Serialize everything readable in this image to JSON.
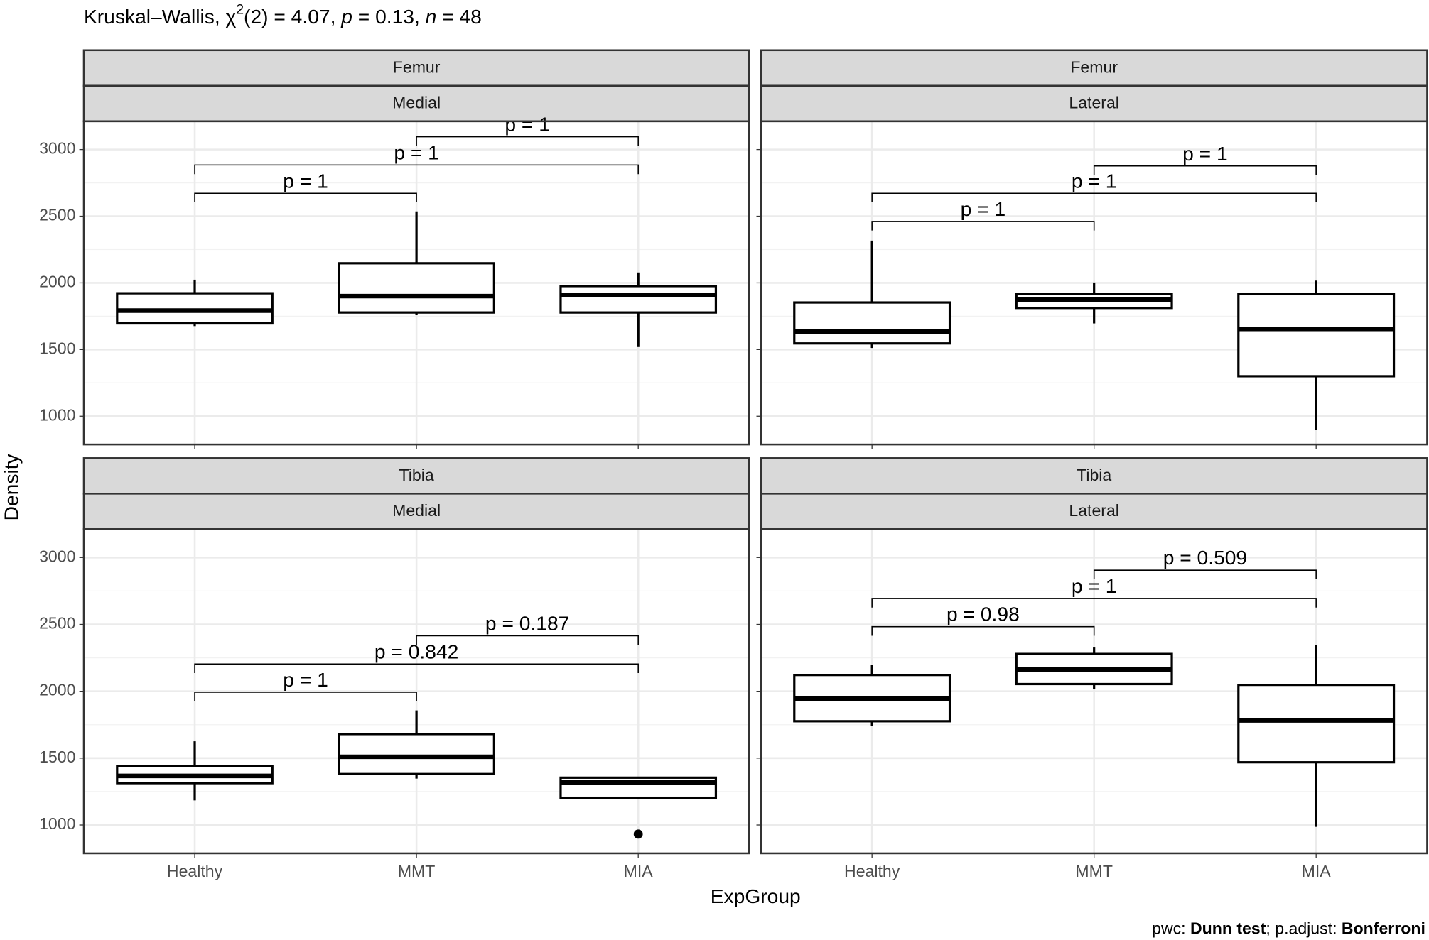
{
  "title_parts": [
    "Kruskal–Wallis, χ",
    "2",
    "(2) = 4.07, ",
    "p",
    " = 0.13, ",
    "n",
    " = 48"
  ],
  "caption_parts": [
    "pwc: ",
    "Dunn test",
    "; p.adjust: ",
    "Bonferroni"
  ],
  "y_label": "Density",
  "x_label": "ExpGroup",
  "chart_data": [
    {
      "type": "box",
      "strip": [
        "Femur",
        "Medial"
      ],
      "categories": [
        "Healthy",
        "MMT",
        "MIA"
      ],
      "whislo": [
        1676,
        1758,
        1519
      ],
      "q1": [
        1696,
        1778,
        1778
      ],
      "median": [
        1792,
        1901,
        1908
      ],
      "q3": [
        1922,
        2147,
        1976
      ],
      "whishi": [
        2024,
        2536,
        2078
      ],
      "outliers": [
        [],
        [],
        []
      ],
      "ylim": [
        788,
        3212
      ],
      "yticks": [
        1000,
        1500,
        2000,
        2500,
        3000
      ],
      "grid": true,
      "brackets": [
        {
          "groups": [
            "Healthy",
            "MMT"
          ],
          "y": 2672,
          "label": "p = 1"
        },
        {
          "groups": [
            "Healthy",
            "MIA"
          ],
          "y": 2884,
          "label": "p = 1"
        },
        {
          "groups": [
            "MMT",
            "MIA"
          ],
          "y": 3096,
          "label": "p = 1"
        }
      ]
    },
    {
      "type": "box",
      "strip": [
        "Femur",
        "Lateral"
      ],
      "categories": [
        "Healthy",
        "MMT",
        "MIA"
      ],
      "whislo": [
        1512,
        1696,
        898
      ],
      "q1": [
        1546,
        1812,
        1300
      ],
      "median": [
        1635,
        1874,
        1655
      ],
      "q3": [
        1853,
        1915,
        1915
      ],
      "whishi": [
        2317,
        2003,
        2017
      ],
      "outliers": [
        [],
        [],
        []
      ],
      "ylim": [
        788,
        3212
      ],
      "yticks": [
        1000,
        1500,
        2000,
        2500,
        3000
      ],
      "grid": true,
      "brackets": [
        {
          "groups": [
            "Healthy",
            "MMT"
          ],
          "y": 2461,
          "label": "p = 1"
        },
        {
          "groups": [
            "Healthy",
            "MIA"
          ],
          "y": 2672,
          "label": "p = 1"
        },
        {
          "groups": [
            "MMT",
            "MIA"
          ],
          "y": 2877,
          "label": "p = 1"
        }
      ]
    },
    {
      "type": "box",
      "strip": [
        "Tibia",
        "Medial"
      ],
      "categories": [
        "Healthy",
        "MMT",
        "MIA"
      ],
      "whislo": [
        1184,
        1347,
        1204
      ],
      "q1": [
        1313,
        1381,
        1204
      ],
      "median": [
        1367,
        1510,
        1320
      ],
      "q3": [
        1442,
        1680,
        1354
      ],
      "whishi": [
        1626,
        1857,
        1361
      ],
      "outliers": [
        [],
        [],
        [
          932
        ]
      ],
      "ylim": [
        788,
        3212
      ],
      "yticks": [
        1000,
        1500,
        2000,
        2500,
        3000
      ],
      "grid": true,
      "brackets": [
        {
          "groups": [
            "Healthy",
            "MMT"
          ],
          "y": 1993,
          "label": "p = 1"
        },
        {
          "groups": [
            "Healthy",
            "MIA"
          ],
          "y": 2204,
          "label": "p = 0.842"
        },
        {
          "groups": [
            "MMT",
            "MIA"
          ],
          "y": 2415,
          "label": "p = 0.187"
        }
      ]
    },
    {
      "type": "box",
      "strip": [
        "Tibia",
        "Lateral"
      ],
      "categories": [
        "Healthy",
        "MMT",
        "MIA"
      ],
      "whislo": [
        1741,
        2014,
        986
      ],
      "q1": [
        1776,
        2054,
        1469
      ],
      "median": [
        1946,
        2163,
        1782
      ],
      "q3": [
        2122,
        2279,
        2048
      ],
      "whishi": [
        2197,
        2327,
        2347
      ],
      "outliers": [
        [],
        [],
        []
      ],
      "ylim": [
        788,
        3212
      ],
      "yticks": [
        1000,
        1500,
        2000,
        2500,
        3000
      ],
      "grid": true,
      "brackets": [
        {
          "groups": [
            "Healthy",
            "MMT"
          ],
          "y": 2483,
          "label": "p = 0.98"
        },
        {
          "groups": [
            "Healthy",
            "MIA"
          ],
          "y": 2694,
          "label": "p = 1"
        },
        {
          "groups": [
            "MMT",
            "MIA"
          ],
          "y": 2905,
          "label": "p = 0.509"
        }
      ]
    }
  ]
}
